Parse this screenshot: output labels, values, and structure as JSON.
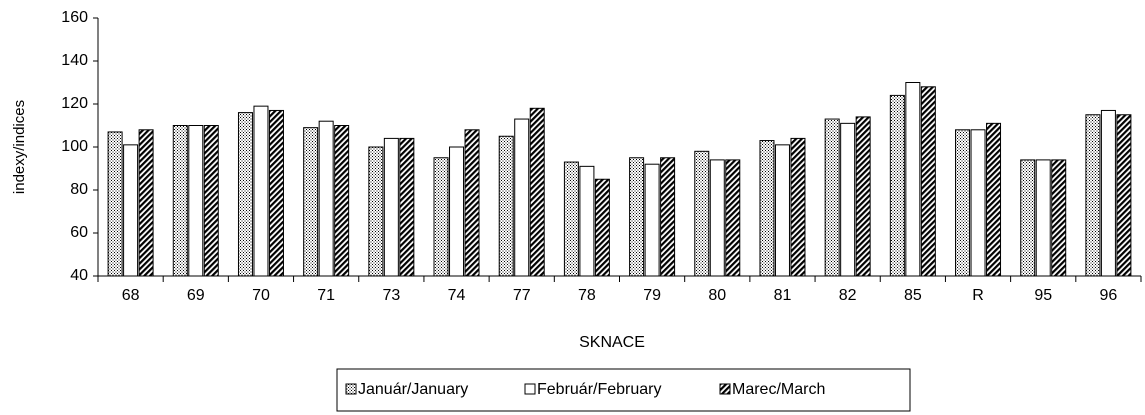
{
  "chart_data": {
    "type": "bar",
    "x_label": "SKNACE",
    "y_label": "indexy/indices",
    "categories": [
      "68",
      "69",
      "70",
      "71",
      "73",
      "74",
      "77",
      "78",
      "79",
      "80",
      "81",
      "82",
      "85",
      "R",
      "95",
      "96"
    ],
    "series": [
      {
        "name": "Január/January",
        "color": "#000000",
        "pattern": "dots",
        "values": [
          107,
          110,
          116,
          109,
          100,
          95,
          105,
          93,
          95,
          98,
          103,
          113,
          124,
          108,
          94,
          115
        ]
      },
      {
        "name": "Február/February",
        "color": "#000000",
        "pattern": "none",
        "values": [
          101,
          110,
          119,
          112,
          104,
          100,
          113,
          91,
          92,
          94,
          101,
          111,
          130,
          108,
          94,
          117
        ]
      },
      {
        "name": "Marec/March",
        "color": "#000000",
        "pattern": "hatch",
        "values": [
          108,
          110,
          117,
          110,
          104,
          108,
          118,
          85,
          95,
          94,
          104,
          114,
          128,
          111,
          94,
          115
        ]
      }
    ],
    "ylim": [
      40,
      160
    ],
    "yticks": [
      40,
      60,
      80,
      100,
      120,
      140,
      160
    ],
    "grid": false,
    "legend": "bottom"
  }
}
